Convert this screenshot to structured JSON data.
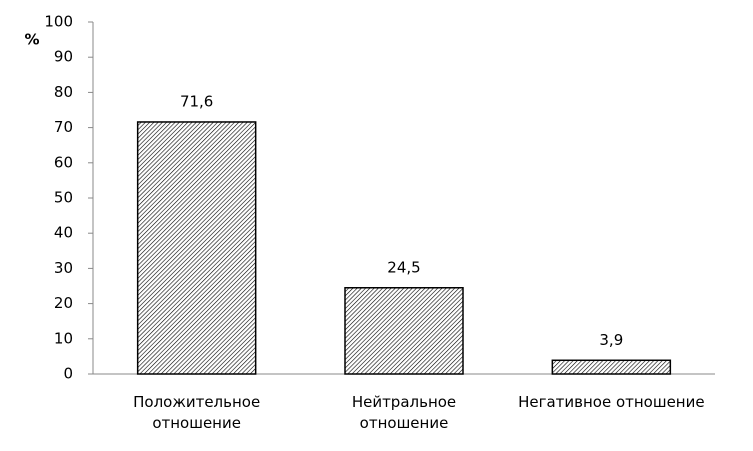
{
  "chart_data": {
    "type": "bar",
    "ylabel": "%",
    "categories": [
      "Положительное отношение",
      "Нейтральное отношение",
      "Негативное отношение"
    ],
    "values": [
      71.6,
      24.5,
      3.9
    ],
    "value_labels": [
      "71,6",
      "24,5",
      "3,9"
    ],
    "color": "#000000",
    "ylim": [
      0,
      100
    ],
    "yticks": [
      0,
      10,
      20,
      30,
      40,
      50,
      60,
      70,
      80,
      90,
      100
    ],
    "grid": false
  }
}
